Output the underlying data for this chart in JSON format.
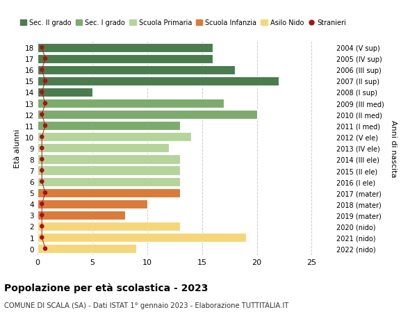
{
  "ages": [
    18,
    17,
    16,
    15,
    14,
    13,
    12,
    11,
    10,
    9,
    8,
    7,
    6,
    5,
    4,
    3,
    2,
    1,
    0
  ],
  "right_labels": [
    "2004 (V sup)",
    "2005 (IV sup)",
    "2006 (III sup)",
    "2007 (II sup)",
    "2008 (I sup)",
    "2009 (III med)",
    "2010 (II med)",
    "2011 (I med)",
    "2012 (V ele)",
    "2013 (IV ele)",
    "2014 (III ele)",
    "2015 (II ele)",
    "2016 (I ele)",
    "2017 (mater)",
    "2018 (mater)",
    "2019 (mater)",
    "2020 (nido)",
    "2021 (nido)",
    "2022 (nido)"
  ],
  "bar_values": [
    16,
    16,
    18,
    22,
    5,
    17,
    20,
    13,
    14,
    12,
    13,
    13,
    13,
    13,
    10,
    8,
    13,
    19,
    9
  ],
  "bar_colors": [
    "#4a7c4e",
    "#4a7c4e",
    "#4a7c4e",
    "#4a7c4e",
    "#4a7c4e",
    "#7dab6e",
    "#7dab6e",
    "#7dab6e",
    "#b5d49a",
    "#b5d49a",
    "#b5d49a",
    "#b5d49a",
    "#b5d49a",
    "#d97b3a",
    "#d97b3a",
    "#d97b3a",
    "#f5d77a",
    "#f5d77a",
    "#f5d77a"
  ],
  "stranieri_x": [
    0.4,
    0.7,
    0.4,
    0.7,
    0.4,
    0.7,
    0.4,
    0.7,
    0.4,
    0.4,
    0.4,
    0.4,
    0.4,
    0.7,
    0.4,
    0.4,
    0.4,
    0.4,
    0.7
  ],
  "legend_labels": [
    "Sec. II grado",
    "Sec. I grado",
    "Scuola Primaria",
    "Scuola Infanzia",
    "Asilo Nido",
    "Stranieri"
  ],
  "legend_colors": [
    "#4a7c4e",
    "#7dab6e",
    "#b5d49a",
    "#d97b3a",
    "#f5d77a",
    "#aa1111"
  ],
  "title": "Popolazione per età scolastica - 2023",
  "subtitle": "COMUNE DI SCALA (SA) - Dati ISTAT 1° gennaio 2023 - Elaborazione TUTTITALIA.IT",
  "ylabel_left": "Età alunni",
  "ylabel_right": "Anni di nascita",
  "xlim": [
    0,
    27
  ],
  "bg_color": "#ffffff",
  "grid_color": "#cccccc"
}
